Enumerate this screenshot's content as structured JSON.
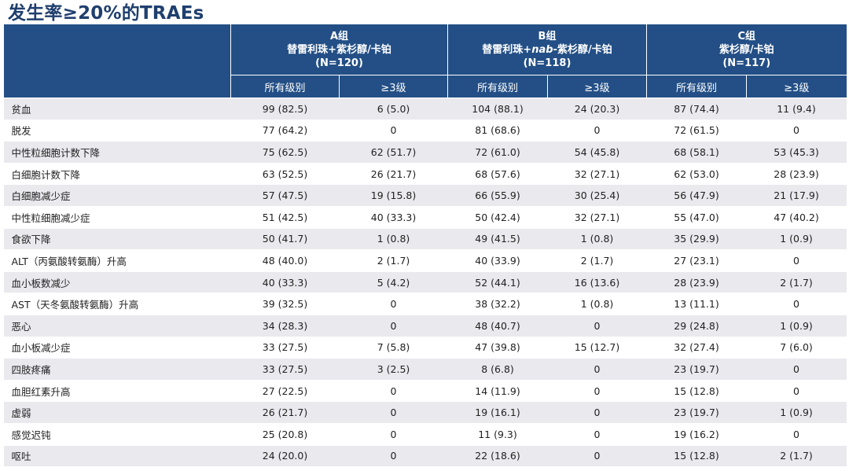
{
  "title": "发生率≥20%的TRAEs",
  "arms": [
    {
      "group": "A组",
      "regimen": "替雷利珠+紫杉醇/卡铂",
      "n": "(N=120)"
    },
    {
      "group": "B组",
      "regimen_prefix": "替雷利珠+",
      "regimen_italic": "nab",
      "regimen_suffix": "-紫杉醇/卡铂",
      "n": "(N=118)"
    },
    {
      "group": "C组",
      "regimen": "紫杉醇/卡铂",
      "n": "(N=117)"
    }
  ],
  "subheaders": {
    "all_grades": "所有级别",
    "grade3plus": "≥3级"
  },
  "rows": [
    {
      "name": "贫血",
      "a_all": "99 (82.5)",
      "a_g3": "6 (5.0)",
      "b_all": "104 (88.1)",
      "b_g3": "24 (20.3)",
      "c_all": "87 (74.4)",
      "c_g3": "11 (9.4)"
    },
    {
      "name": "脱发",
      "a_all": "77 (64.2)",
      "a_g3": "0",
      "b_all": "81 (68.6)",
      "b_g3": "0",
      "c_all": "72 (61.5)",
      "c_g3": "0"
    },
    {
      "name": "中性粒细胞计数下降",
      "a_all": "75 (62.5)",
      "a_g3": "62 (51.7)",
      "b_all": "72 (61.0)",
      "b_g3": "54 (45.8)",
      "c_all": "68 (58.1)",
      "c_g3": "53 (45.3)"
    },
    {
      "name": "白细胞计数下降",
      "a_all": "63 (52.5)",
      "a_g3": "26 (21.7)",
      "b_all": "68 (57.6)",
      "b_g3": "32 (27.1)",
      "c_all": "62 (53.0)",
      "c_g3": "28 (23.9)"
    },
    {
      "name": "白细胞减少症",
      "a_all": "57 (47.5)",
      "a_g3": "19 (15.8)",
      "b_all": "66 (55.9)",
      "b_g3": "30 (25.4)",
      "c_all": "56 (47.9)",
      "c_g3": "21 (17.9)"
    },
    {
      "name": "中性粒细胞减少症",
      "a_all": "51 (42.5)",
      "a_g3": "40 (33.3)",
      "b_all": "50 (42.4)",
      "b_g3": "32 (27.1)",
      "c_all": "55 (47.0)",
      "c_g3": "47 (40.2)"
    },
    {
      "name": "食欲下降",
      "a_all": "50 (41.7)",
      "a_g3": "1 (0.8)",
      "b_all": "49 (41.5)",
      "b_g3": "1 (0.8)",
      "c_all": "35 (29.9)",
      "c_g3": "1 (0.9)"
    },
    {
      "name": "ALT（丙氨酸转氨酶）升高",
      "a_all": "48 (40.0)",
      "a_g3": "2 (1.7)",
      "b_all": "40 (33.9)",
      "b_g3": "2 (1.7)",
      "c_all": "27 (23.1)",
      "c_g3": "0"
    },
    {
      "name": "血小板数减少",
      "a_all": "40 (33.3)",
      "a_g3": "5 (4.2)",
      "b_all": "52 (44.1)",
      "b_g3": "16 (13.6)",
      "c_all": "28 (23.9)",
      "c_g3": "2 (1.7)"
    },
    {
      "name": "AST（天冬氨酸转氨酶）升高",
      "a_all": "39 (32.5)",
      "a_g3": "0",
      "b_all": "38 (32.2)",
      "b_g3": "1 (0.8)",
      "c_all": "13 (11.1)",
      "c_g3": "0"
    },
    {
      "name": "恶心",
      "a_all": "34 (28.3)",
      "a_g3": "0",
      "b_all": "48 (40.7)",
      "b_g3": "0",
      "c_all": "29 (24.8)",
      "c_g3": "1 (0.9)"
    },
    {
      "name": "血小板减少症",
      "a_all": "33 (27.5)",
      "a_g3": "7 (5.8)",
      "b_all": "47 (39.8)",
      "b_g3": "15 (12.7)",
      "c_all": "32 (27.4)",
      "c_g3": "7 (6.0)"
    },
    {
      "name": "四肢疼痛",
      "a_all": "33 (27.5)",
      "a_g3": "3 (2.5)",
      "b_all": "8 (6.8)",
      "b_g3": "0",
      "c_all": "23 (19.7)",
      "c_g3": "0"
    },
    {
      "name": "血胆红素升高",
      "a_all": "27 (22.5)",
      "a_g3": "0",
      "b_all": "14 (11.9)",
      "b_g3": "0",
      "c_all": "15 (12.8)",
      "c_g3": "0"
    },
    {
      "name": "虚弱",
      "a_all": "26 (21.7)",
      "a_g3": "0",
      "b_all": "19 (16.1)",
      "b_g3": "0",
      "c_all": "23 (19.7)",
      "c_g3": "1 (0.9)"
    },
    {
      "name": "感觉迟钝",
      "a_all": "25 (20.8)",
      "a_g3": "0",
      "b_all": "11 (9.3)",
      "b_g3": "0",
      "c_all": "19 (16.2)",
      "c_g3": "0"
    },
    {
      "name": "呕吐",
      "a_all": "24 (20.0)",
      "a_g3": "0",
      "b_all": "22 (18.6)",
      "b_g3": "0",
      "c_all": "15 (12.8)",
      "c_g3": "2 (1.7)"
    }
  ],
  "colors": {
    "title": "#1f3f6e",
    "header_bg": "#234f86",
    "header_text": "#ffffff",
    "stripe": "#e9e9ee"
  }
}
